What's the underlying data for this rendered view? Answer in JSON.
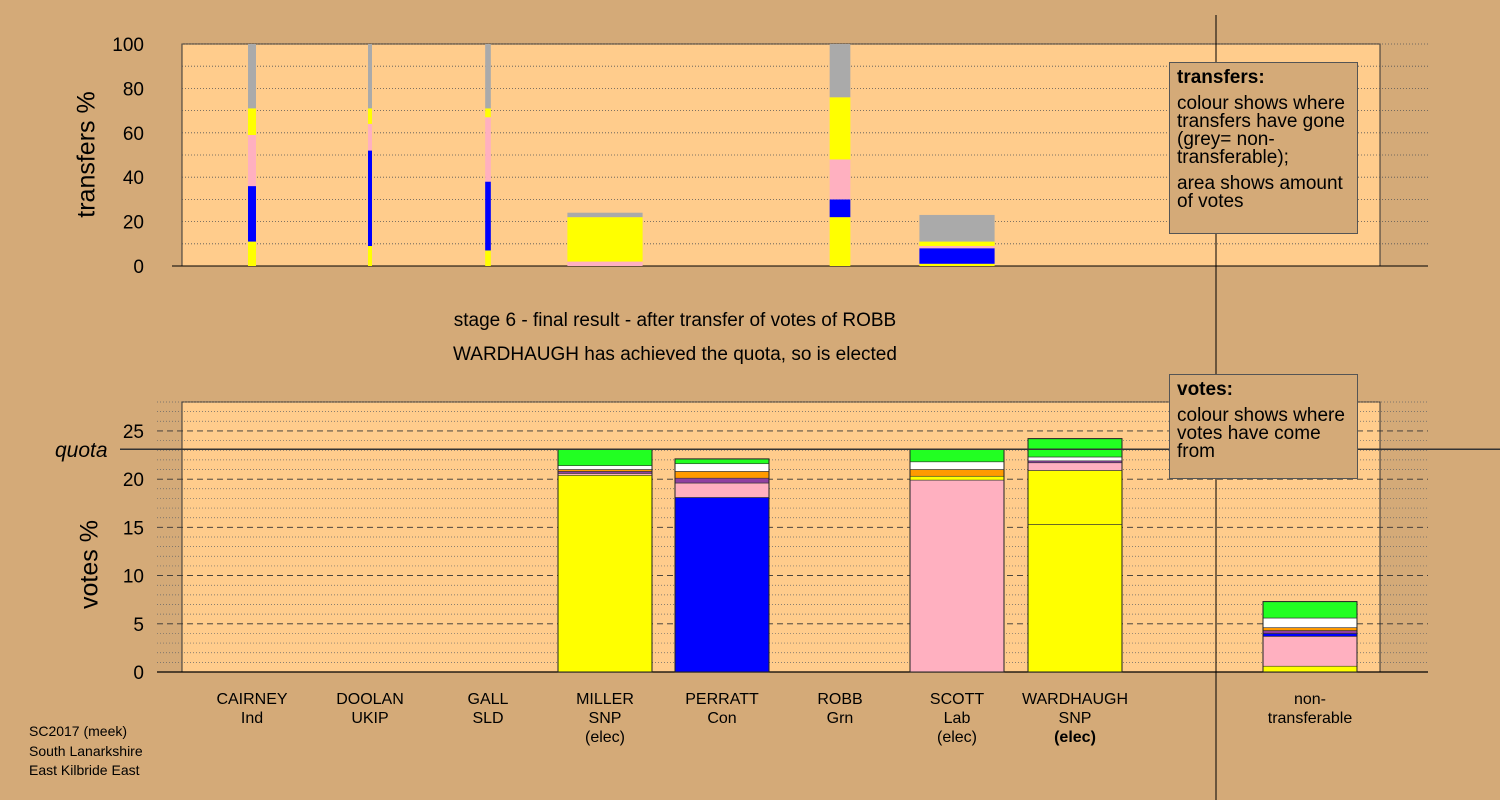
{
  "stage_text": "stage 6 - final result - after transfer of votes of ROBB",
  "elected_text": "WARDHAUGH has achieved the quota, so is elected",
  "source": [
    "SC2017 (meek)",
    "South Lanarkshire",
    "East Kilbride East"
  ],
  "legend_transfers": {
    "title": "transfers:",
    "line1": "colour shows where transfers have gone (grey= non-transferable);",
    "line2": "area shows amount of votes"
  },
  "legend_votes": {
    "title": "votes:",
    "line1": "colour shows where votes have come from"
  },
  "quota_label": "quota",
  "colors": {
    "background": "#d4aa78",
    "plot_bg": "#ffcc8c",
    "snp_yellow": "#ffff00",
    "con_blue": "#0000ff",
    "lab_pink": "#ffb0c0",
    "grn_green": "#22ff22",
    "ukip_purple": "#9040a0",
    "sld_orange": "#ff9a00",
    "ind_white": "#ffffff",
    "grey_nontransferable": "#aaaaaa"
  },
  "candidates": [
    {
      "name": "CAIRNEY",
      "party": "Ind",
      "status": ""
    },
    {
      "name": "DOOLAN",
      "party": "UKIP",
      "status": ""
    },
    {
      "name": "GALL",
      "party": "SLD",
      "status": ""
    },
    {
      "name": "MILLER",
      "party": "SNP",
      "status": "(elec)"
    },
    {
      "name": "PERRATT",
      "party": "Con",
      "status": ""
    },
    {
      "name": "ROBB",
      "party": "Grn",
      "status": ""
    },
    {
      "name": "SCOTT",
      "party": "Lab",
      "status": "(elec)"
    },
    {
      "name": "WARDHAUGH",
      "party": "SNP",
      "status": "(elec)"
    },
    {
      "name": "non-",
      "party": "transferable",
      "status": ""
    }
  ],
  "chart_data": [
    {
      "type": "bar",
      "ylabel": "transfers %",
      "ylim": [
        0,
        100
      ],
      "yticks": [
        0,
        20,
        40,
        60,
        80,
        100
      ],
      "categories": [
        "CAIRNEY",
        "DOOLAN",
        "GALL",
        "MILLER",
        "PERRATT",
        "ROBB",
        "SCOTT",
        "WARDHAUGH",
        "non-transferable"
      ],
      "stacks": [
        {
          "category": "CAIRNEY",
          "width_share": 0.085,
          "segments": [
            {
              "color": "#ffff00",
              "from": 0,
              "to": 11
            },
            {
              "color": "#0000ff",
              "from": 11,
              "to": 36
            },
            {
              "color": "#ffb0c0",
              "from": 36,
              "to": 59
            },
            {
              "color": "#ffff00",
              "from": 59,
              "to": 71
            },
            {
              "color": "#aaaaaa",
              "from": 71,
              "to": 100
            }
          ]
        },
        {
          "category": "DOOLAN",
          "width_share": 0.03,
          "segments": [
            {
              "color": "#ffff00",
              "from": 0,
              "to": 9
            },
            {
              "color": "#0000ff",
              "from": 9,
              "to": 52
            },
            {
              "color": "#ffb0c0",
              "from": 52,
              "to": 64
            },
            {
              "color": "#ffff00",
              "from": 64,
              "to": 71
            },
            {
              "color": "#aaaaaa",
              "from": 71,
              "to": 100
            }
          ]
        },
        {
          "category": "GALL",
          "width_share": 0.06,
          "segments": [
            {
              "color": "#ffff00",
              "from": 0,
              "to": 7
            },
            {
              "color": "#0000ff",
              "from": 7,
              "to": 38
            },
            {
              "color": "#ffb0c0",
              "from": 38,
              "to": 67
            },
            {
              "color": "#ffff00",
              "from": 67,
              "to": 71
            },
            {
              "color": "#aaaaaa",
              "from": 71,
              "to": 100
            }
          ]
        },
        {
          "category": "MILLER",
          "width_share": 0.8,
          "segments": [
            {
              "color": "#ffb0c0",
              "from": 0,
              "to": 2
            },
            {
              "color": "#ffff00",
              "from": 2,
              "to": 22
            },
            {
              "color": "#aaaaaa",
              "from": 22,
              "to": 24
            }
          ]
        },
        {
          "category": "ROBB",
          "width_share": 0.22,
          "segments": [
            {
              "color": "#ffff00",
              "from": 0,
              "to": 22
            },
            {
              "color": "#0000ff",
              "from": 22,
              "to": 30
            },
            {
              "color": "#ffb0c0",
              "from": 30,
              "to": 48
            },
            {
              "color": "#ffff00",
              "from": 48,
              "to": 76
            },
            {
              "color": "#aaaaaa",
              "from": 76,
              "to": 100
            }
          ]
        },
        {
          "category": "SCOTT",
          "width_share": 0.8,
          "segments": [
            {
              "color": "#ffff00",
              "from": 0,
              "to": 1
            },
            {
              "color": "#0000ff",
              "from": 1,
              "to": 8
            },
            {
              "color": "#ffb0c0",
              "from": 8,
              "to": 9
            },
            {
              "color": "#ffff00",
              "from": 9,
              "to": 11
            },
            {
              "color": "#aaaaaa",
              "from": 11,
              "to": 23
            }
          ]
        }
      ]
    },
    {
      "type": "bar",
      "ylabel": "votes %",
      "ylim": [
        0,
        28
      ],
      "yticks": [
        0,
        5,
        10,
        15,
        20,
        25
      ],
      "quota": 23.1,
      "categories": [
        "CAIRNEY",
        "DOOLAN",
        "GALL",
        "MILLER",
        "PERRATT",
        "ROBB",
        "SCOTT",
        "WARDHAUGH",
        "non-transferable"
      ],
      "stacks": [
        {
          "category": "MILLER",
          "segments": [
            {
              "color": "#ffff00",
              "from": 0,
              "to": 20.4
            },
            {
              "color": "#ffb0c0",
              "from": 20.4,
              "to": 20.6
            },
            {
              "color": "#9040a0",
              "from": 20.6,
              "to": 20.8
            },
            {
              "color": "#ff9a00",
              "from": 20.8,
              "to": 21.0
            },
            {
              "color": "#ffffff",
              "from": 21.0,
              "to": 21.4
            },
            {
              "color": "#22ff22",
              "from": 21.4,
              "to": 23.1
            }
          ]
        },
        {
          "category": "PERRATT",
          "segments": [
            {
              "color": "#0000ff",
              "from": 0,
              "to": 18.1
            },
            {
              "color": "#ffb0c0",
              "from": 18.1,
              "to": 19.6
            },
            {
              "color": "#9040a0",
              "from": 19.6,
              "to": 20.1
            },
            {
              "color": "#ff9a00",
              "from": 20.1,
              "to": 20.8
            },
            {
              "color": "#ffffff",
              "from": 20.8,
              "to": 21.6
            },
            {
              "color": "#22ff22",
              "from": 21.6,
              "to": 22.1
            }
          ]
        },
        {
          "category": "SCOTT",
          "segments": [
            {
              "color": "#ffb0c0",
              "from": 0,
              "to": 19.9
            },
            {
              "color": "#ffff00",
              "from": 19.9,
              "to": 20.3
            },
            {
              "color": "#ff9a00",
              "from": 20.3,
              "to": 21.0
            },
            {
              "color": "#ffffff",
              "from": 21.0,
              "to": 21.8
            },
            {
              "color": "#22ff22",
              "from": 21.8,
              "to": 23.1
            }
          ]
        },
        {
          "category": "WARDHAUGH",
          "segments": [
            {
              "color": "#ffff00",
              "from": 0,
              "to": 15.3
            },
            {
              "color": "#ffff00",
              "from": 15.3,
              "to": 20.9
            },
            {
              "color": "#ffb0c0",
              "from": 20.9,
              "to": 21.7
            },
            {
              "color": "#9040a0",
              "from": 21.7,
              "to": 21.9
            },
            {
              "color": "#ffffff",
              "from": 21.9,
              "to": 22.3
            },
            {
              "color": "#22ff22",
              "from": 22.3,
              "to": 24.2
            }
          ]
        },
        {
          "category": "non-transferable",
          "segments": [
            {
              "color": "#ffff00",
              "from": 0,
              "to": 0.6
            },
            {
              "color": "#ffb0c0",
              "from": 0.6,
              "to": 3.7
            },
            {
              "color": "#0000ff",
              "from": 3.7,
              "to": 4.0
            },
            {
              "color": "#9040a0",
              "from": 4.0,
              "to": 4.3
            },
            {
              "color": "#ff9a00",
              "from": 4.3,
              "to": 4.6
            },
            {
              "color": "#ffffff",
              "from": 4.6,
              "to": 5.6
            },
            {
              "color": "#22ff22",
              "from": 5.6,
              "to": 7.3
            }
          ]
        }
      ]
    }
  ]
}
